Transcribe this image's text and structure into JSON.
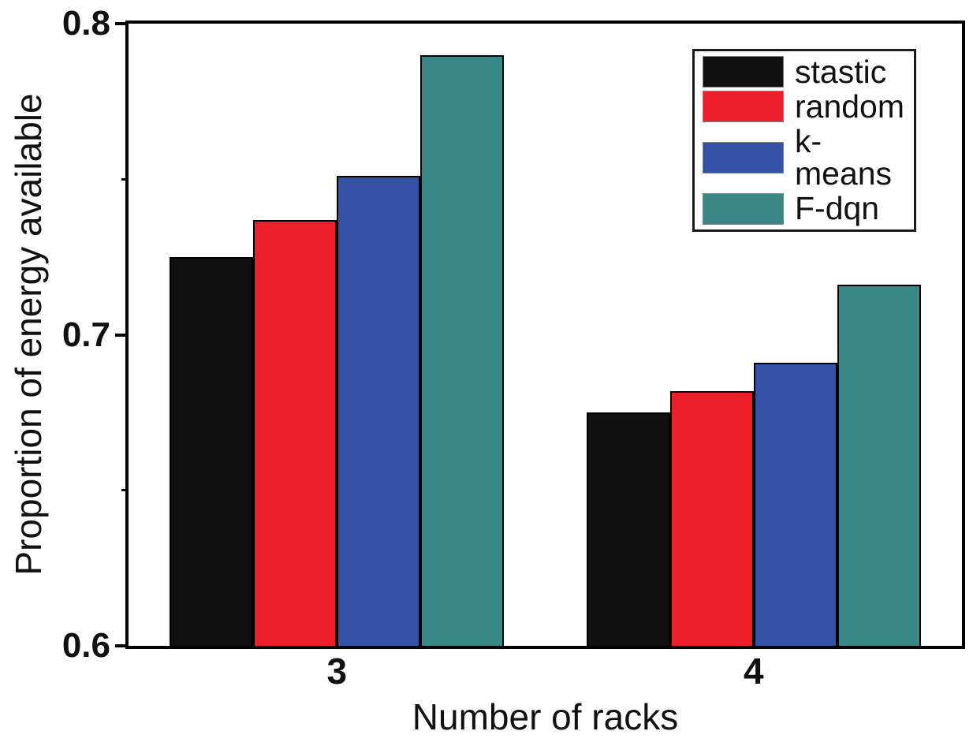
{
  "chart_data": {
    "type": "bar",
    "title": "",
    "xlabel": "Number of racks",
    "ylabel": "Proportion of energy available",
    "categories": [
      "3",
      "4"
    ],
    "series": [
      {
        "name": "stastic",
        "color": "#101010",
        "values": [
          0.725,
          0.675
        ]
      },
      {
        "name": "random",
        "color": "#ED1F2B",
        "values": [
          0.737,
          0.682
        ]
      },
      {
        "name": "k-means",
        "color": "#3451A6",
        "values": [
          0.751,
          0.691
        ]
      },
      {
        "name": "F-dqn",
        "color": "#3A8787",
        "values": [
          0.79,
          0.716
        ]
      }
    ],
    "ylim": [
      0.6,
      0.8
    ],
    "yticks_major": [
      0.8,
      0.7,
      0.6
    ],
    "ytick_labels": [
      "0.8",
      "0.7",
      "0.6"
    ],
    "yticks_minor": [
      0.75,
      0.65
    ],
    "grid": false,
    "legend_position": "top-right",
    "bar_edge_color": "#000000",
    "axis_color": "#000000"
  }
}
